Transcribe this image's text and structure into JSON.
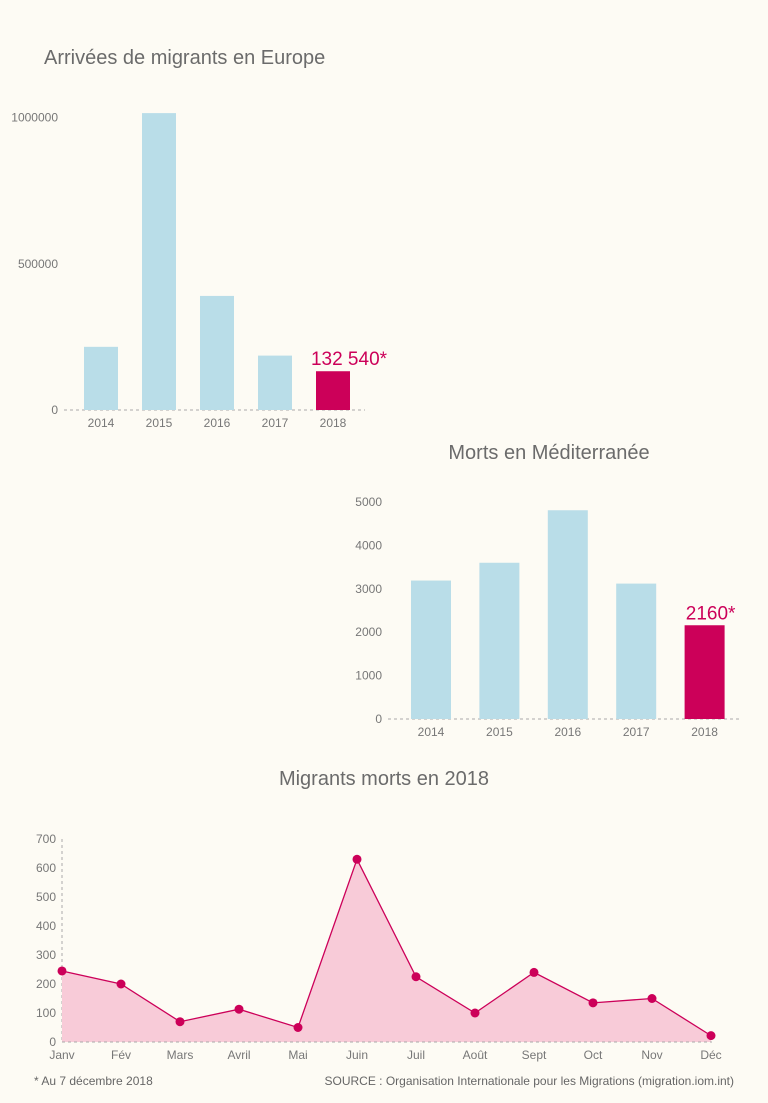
{
  "colors": {
    "bar": "#b9dde8",
    "highlight": "#cc0059",
    "area": "#f8cbd8",
    "line": "#cc0059",
    "axis": "#aaaaaa",
    "background": "#fdfbf4"
  },
  "chart_data": [
    {
      "type": "bar",
      "title": "Arrivées de migrants en Europe",
      "categories": [
        "2014",
        "2015",
        "2016",
        "2017",
        "2018"
      ],
      "values": [
        216000,
        1015000,
        390000,
        186000,
        132540
      ],
      "highlight_index": 4,
      "annotation": "132 540*",
      "ylim": [
        0,
        1000000
      ],
      "yticks": [
        "0",
        "500000",
        "1000000"
      ],
      "grid": false
    },
    {
      "type": "bar",
      "title": "Morts en Méditerranée",
      "categories": [
        "2014",
        "2015",
        "2016",
        "2017",
        "2018"
      ],
      "values": [
        3190,
        3600,
        4810,
        3120,
        2160
      ],
      "highlight_index": 4,
      "annotation": "2160*",
      "ylim": [
        0,
        5000
      ],
      "yticks": [
        "0",
        "1000",
        "2000",
        "3000",
        "4000",
        "5000"
      ],
      "grid": false
    },
    {
      "type": "area",
      "title": "Migrants morts en 2018",
      "categories": [
        "Janv",
        "Fév",
        "Mars",
        "Avril",
        "Mai",
        "Juin",
        "Juil",
        "Août",
        "Sept",
        "Oct",
        "Nov",
        "Déc"
      ],
      "values": [
        245,
        200,
        70,
        113,
        50,
        630,
        225,
        100,
        240,
        135,
        150,
        22
      ],
      "ylim": [
        0,
        700
      ],
      "yticks": [
        "0",
        "100",
        "200",
        "300",
        "400",
        "500",
        "600",
        "700"
      ],
      "grid": false
    }
  ],
  "footnote": "* Au 7 décembre 2018",
  "source": "SOURCE : Organisation Internationale pour les Migrations (migration.iom.int)"
}
